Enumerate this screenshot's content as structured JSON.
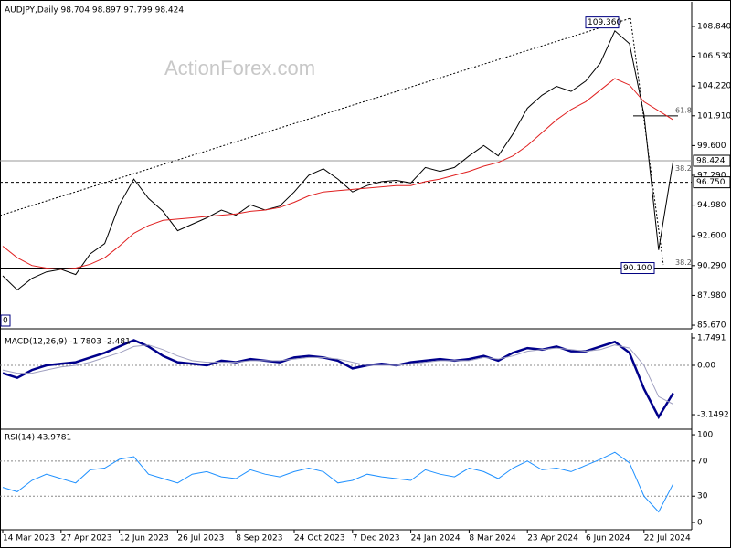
{
  "watermark": "ActionForex.com",
  "chart_data": [
    {
      "type": "line",
      "title": "AUDJPY,Daily  98.704 98.897 97.799 98.424",
      "ylim": [
        85.39,
        110.75
      ],
      "yticks": [
        {
          "value": 108.84,
          "label": "108.840"
        },
        {
          "value": 106.53,
          "label": "106.530"
        },
        {
          "value": 104.22,
          "label": "104.220"
        },
        {
          "value": 101.91,
          "label": "101.910"
        },
        {
          "value": 99.6,
          "label": "99.600"
        },
        {
          "value": 97.29,
          "label": "97.290"
        },
        {
          "value": 94.98,
          "label": "94.980"
        },
        {
          "value": 92.6,
          "label": "92.600"
        },
        {
          "value": 90.29,
          "label": "90.290"
        },
        {
          "value": 87.98,
          "label": "87.980"
        },
        {
          "value": 85.67,
          "label": "85.670"
        }
      ],
      "grid": false,
      "series": [
        {
          "color": "#000000",
          "values": [
            89.5,
            88.4,
            89.3,
            89.8,
            90.0,
            89.6,
            91.2,
            92.0,
            95.0,
            97.0,
            95.5,
            94.5,
            93.0,
            93.5,
            94.0,
            94.6,
            94.2,
            95.0,
            94.6,
            94.9,
            96.0,
            97.3,
            97.8,
            97.0,
            96.0,
            96.5,
            96.8,
            96.9,
            96.7,
            97.9,
            97.6,
            97.9,
            98.8,
            99.6,
            98.8,
            100.5,
            102.5,
            103.5,
            104.2,
            103.8,
            104.6,
            106.0,
            108.5,
            107.5,
            102.0,
            91.5,
            98.424
          ]
        },
        {
          "color": "#e02020",
          "values": [
            91.8,
            90.9,
            90.3,
            90.1,
            90.0,
            90.1,
            90.4,
            90.9,
            91.8,
            92.8,
            93.4,
            93.8,
            93.9,
            94.0,
            94.1,
            94.2,
            94.3,
            94.5,
            94.6,
            94.8,
            95.2,
            95.7,
            96.0,
            96.1,
            96.2,
            96.3,
            96.4,
            96.5,
            96.5,
            96.8,
            97.0,
            97.3,
            97.6,
            98.0,
            98.3,
            98.8,
            99.6,
            100.6,
            101.6,
            102.4,
            103.0,
            103.9,
            104.8,
            104.3,
            103.0,
            102.3,
            101.6
          ]
        }
      ],
      "levels": [
        {
          "value": 98.424,
          "label": "98.424"
        },
        {
          "value": 96.75,
          "label": "96.750"
        }
      ],
      "marked_levels": [
        {
          "value": 109.36,
          "label": "109.360"
        },
        {
          "value": 90.1,
          "label": "90.100"
        }
      ],
      "fib_levels": [
        {
          "value": 101.9,
          "label": "61.8"
        },
        {
          "value": 97.4,
          "label": "38.2"
        },
        {
          "value": 90.1,
          "label": "38.2"
        }
      ],
      "cut_label": "0"
    },
    {
      "type": "line",
      "title": "MACD(12,26,9) -1.7803 -2.481",
      "ylim": [
        -4.08,
        2.04
      ],
      "yticks": [
        {
          "value": 1.7491,
          "label": "1.7491"
        },
        {
          "value": 0,
          "label": "0.00"
        },
        {
          "value": -3.1492,
          "label": "-3.1492"
        }
      ],
      "series": [
        {
          "color": "#00008b",
          "values": [
            -0.5,
            -0.8,
            -0.3,
            0.0,
            0.1,
            0.2,
            0.5,
            0.8,
            1.2,
            1.6,
            1.2,
            0.6,
            0.2,
            0.1,
            0.0,
            0.3,
            0.2,
            0.4,
            0.3,
            0.2,
            0.5,
            0.6,
            0.5,
            0.3,
            -0.2,
            0.0,
            0.1,
            0.0,
            0.2,
            0.3,
            0.4,
            0.3,
            0.4,
            0.6,
            0.3,
            0.8,
            1.1,
            1.0,
            1.2,
            0.9,
            0.9,
            1.2,
            1.5,
            0.8,
            -1.5,
            -3.3,
            -1.78
          ]
        },
        {
          "color": "#a0a0c0",
          "values": [
            -0.3,
            -0.5,
            -0.5,
            -0.3,
            -0.1,
            0.0,
            0.2,
            0.5,
            0.8,
            1.2,
            1.3,
            1.0,
            0.6,
            0.3,
            0.2,
            0.2,
            0.2,
            0.3,
            0.3,
            0.3,
            0.4,
            0.5,
            0.5,
            0.4,
            0.2,
            0.0,
            0.0,
            0.0,
            0.1,
            0.2,
            0.3,
            0.3,
            0.3,
            0.5,
            0.4,
            0.6,
            0.9,
            1.0,
            1.1,
            1.0,
            0.9,
            1.0,
            1.3,
            1.1,
            0.0,
            -2.0,
            -2.48
          ]
        }
      ]
    },
    {
      "type": "line",
      "title": "RSI(14) 43.9781",
      "ylim": [
        -8.3,
        106.3
      ],
      "yticks": [
        100,
        70,
        30,
        0
      ],
      "dashed_levels": [
        70,
        30
      ],
      "categories": [
        "14 Mar 2023",
        null,
        null,
        null,
        "27 Apr 2023",
        null,
        null,
        null,
        "12 Jun 2023",
        null,
        null,
        null,
        "26 Jul 2023",
        null,
        null,
        null,
        "8 Sep 2023",
        null,
        null,
        null,
        "24 Oct 2023",
        null,
        null,
        null,
        "7 Dec 2023",
        null,
        null,
        null,
        "24 Jan 2024",
        null,
        null,
        null,
        "8 Mar 2024",
        null,
        null,
        null,
        "23 Apr 2024",
        null,
        null,
        null,
        "6 Jun 2024",
        null,
        null,
        null,
        "22 Jul 2024",
        null,
        null
      ],
      "series": [
        {
          "color": "#1e90ff",
          "values": [
            40,
            35,
            48,
            55,
            50,
            45,
            60,
            62,
            72,
            75,
            55,
            50,
            45,
            55,
            58,
            52,
            50,
            60,
            55,
            52,
            58,
            62,
            58,
            45,
            48,
            55,
            52,
            50,
            48,
            60,
            55,
            52,
            62,
            58,
            50,
            62,
            70,
            60,
            62,
            58,
            65,
            72,
            80,
            68,
            30,
            12,
            43.98
          ]
        }
      ]
    }
  ]
}
